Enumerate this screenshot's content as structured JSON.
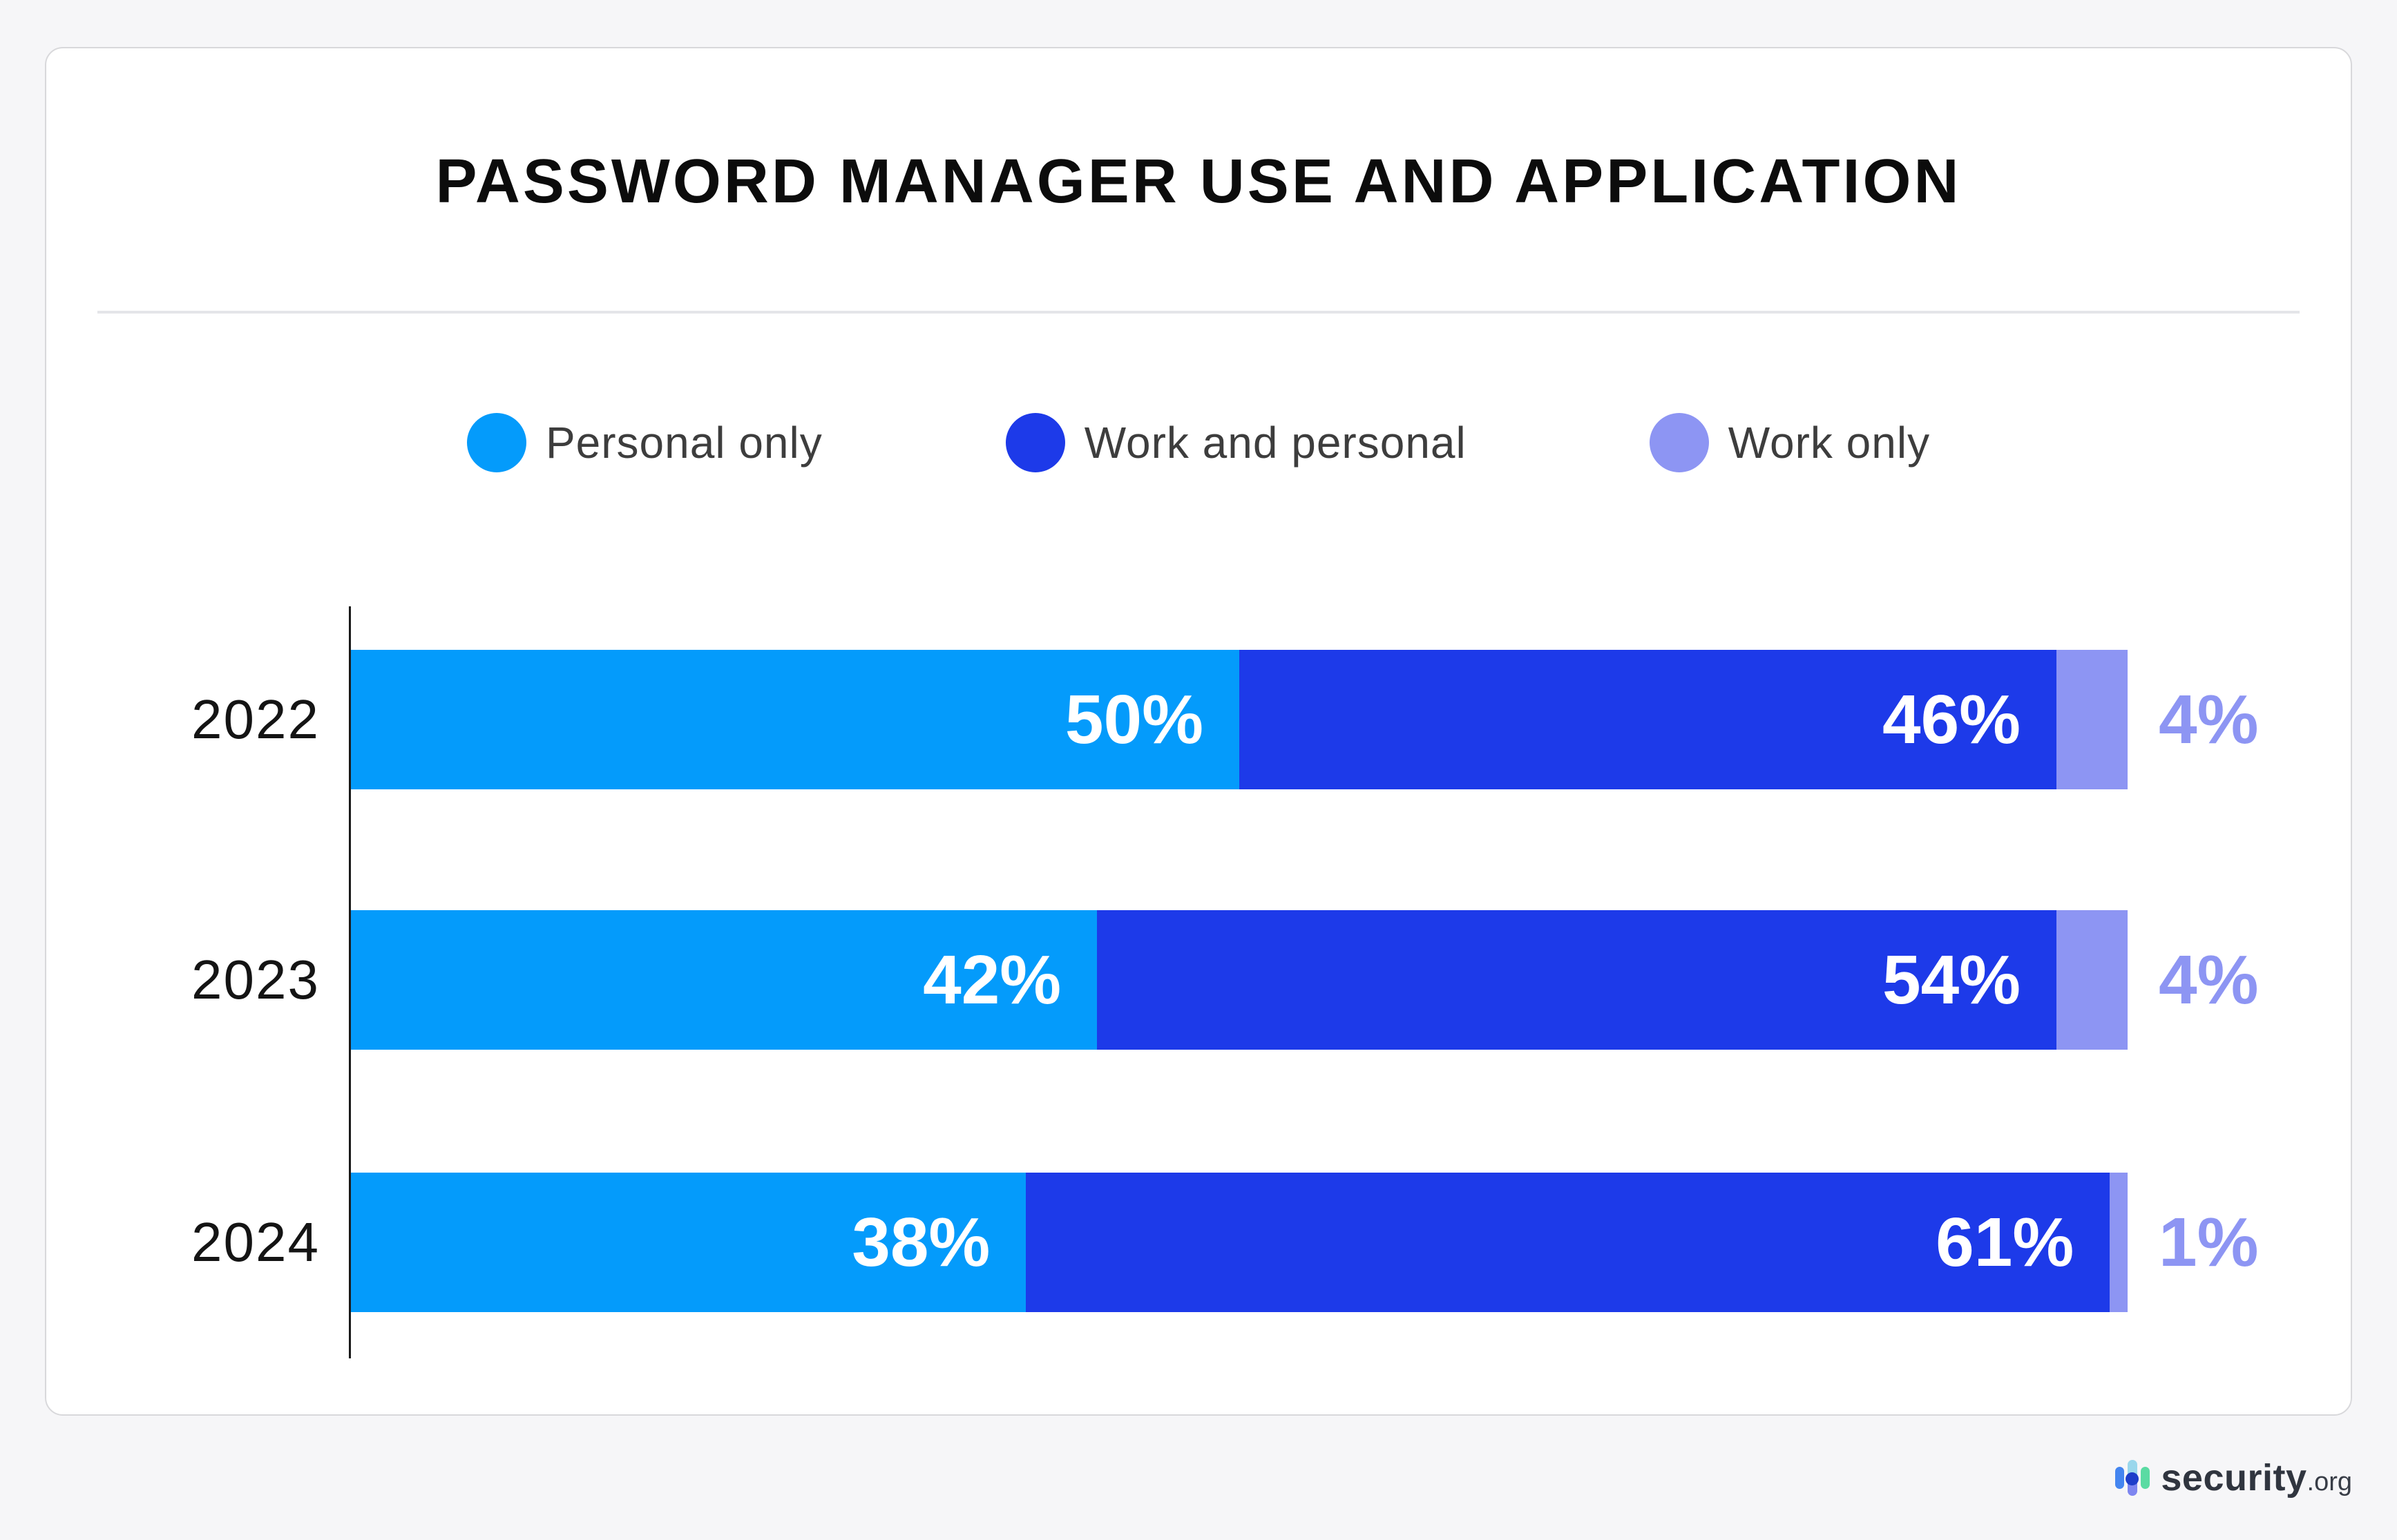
{
  "title": "PASSWORD MANAGER USE AND APPLICATION",
  "chart_data": {
    "type": "bar",
    "orientation": "horizontal",
    "stacked": true,
    "title": "PASSWORD MANAGER USE AND APPLICATION",
    "categories": [
      "2022",
      "2023",
      "2024"
    ],
    "series": [
      {
        "name": "Personal only",
        "color": "#049bfb",
        "values": [
          50,
          42,
          38
        ]
      },
      {
        "name": "Work and personal",
        "color": "#1d3ae9",
        "values": [
          46,
          54,
          61
        ]
      },
      {
        "name": "Work only",
        "color": "#8d95f3",
        "values": [
          4,
          4,
          1
        ]
      }
    ],
    "value_suffix": "%",
    "xlim": [
      0,
      100
    ],
    "grid": false,
    "legend_position": "top",
    "value_label_style": "bold white inside segment, small segments labeled outside bar in segment color"
  },
  "legend": {
    "items": [
      {
        "label": "Personal only",
        "color": "#049bfb"
      },
      {
        "label": "Work and personal",
        "color": "#1d3ae9"
      },
      {
        "label": "Work only",
        "color": "#8d95f3"
      }
    ]
  },
  "footer": {
    "brand": "security",
    "brand_suffix": ".org"
  },
  "colors": {
    "page_bg": "#f6f6f8",
    "card_bg": "#ffffff",
    "card_border": "#d8d8db",
    "divider": "#e4e5e9",
    "axis": "#1a1a1a",
    "title_text": "#0c0c0c",
    "legend_text": "#3d3d3d",
    "year_text": "#141414",
    "bar_value_text": "#ffffff"
  }
}
